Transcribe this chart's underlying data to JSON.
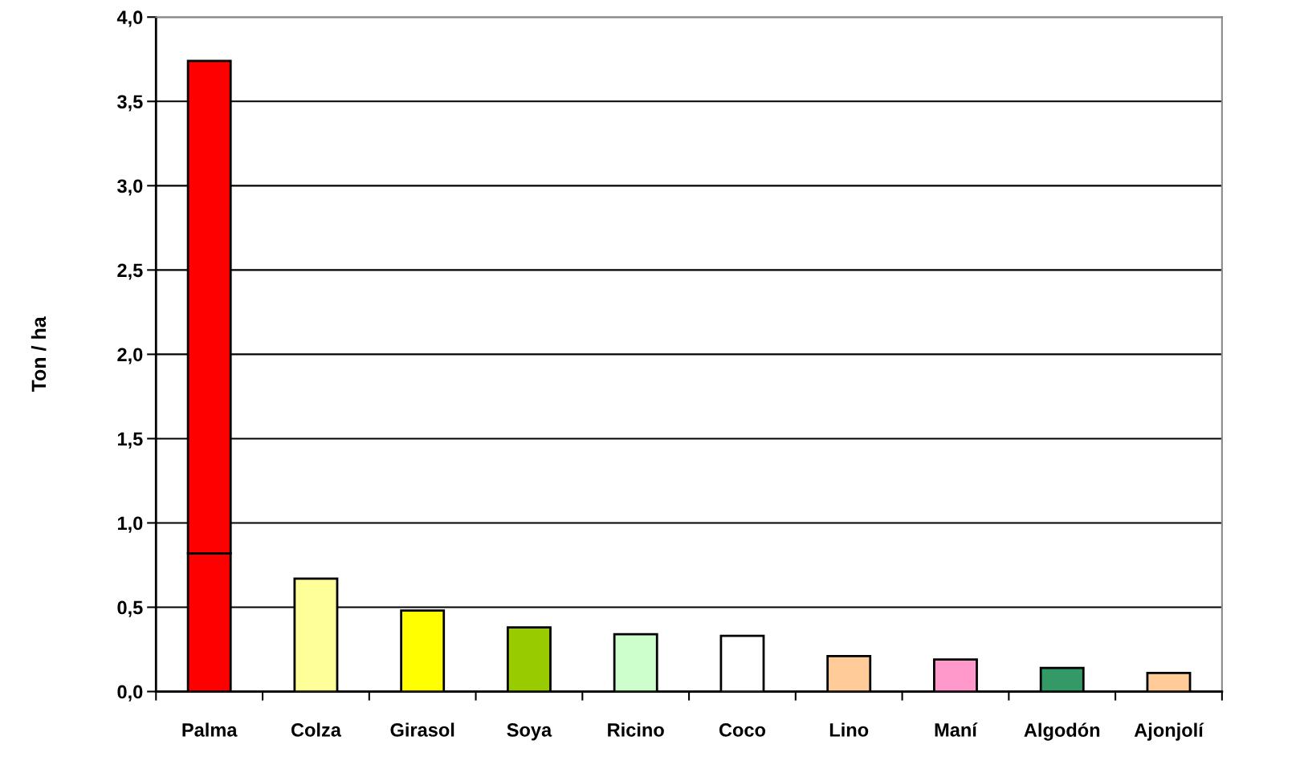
{
  "chart_data": {
    "type": "bar",
    "ylabel": "Ton / ha",
    "stacked": true,
    "categories": [
      "Palma",
      "Colza",
      "Girasol",
      "Soya",
      "Ricino",
      "Coco",
      "Lino",
      "Maní",
      "Algodón",
      "Ajonjolí"
    ],
    "series": [
      {
        "colors": [
          "#ff0000",
          "#ffff99",
          "#ffff00",
          "#99cc00",
          "#ccffcc",
          "#ffffff",
          "#ffcc99",
          "#ff99cc",
          "#339966",
          "#ffcc99"
        ],
        "values": [
          0.82,
          0.67,
          0.48,
          0.38,
          0.34,
          0.33,
          0.21,
          0.19,
          0.14,
          0.11
        ]
      },
      {
        "color": "#ff0000",
        "values": [
          2.92,
          null,
          null,
          null,
          null,
          null,
          null,
          null,
          null,
          null
        ]
      }
    ],
    "ylim": [
      0,
      4
    ],
    "yticks": [
      {
        "value": 0,
        "label": "0,0"
      },
      {
        "value": 0.5,
        "label": "0,5"
      },
      {
        "value": 1,
        "label": "1,0"
      },
      {
        "value": 1.5,
        "label": "1,5"
      },
      {
        "value": 2,
        "label": "2,0"
      },
      {
        "value": 2.5,
        "label": "2,5"
      },
      {
        "value": 3,
        "label": "3,0"
      },
      {
        "value": 3.5,
        "label": "3,5"
      },
      {
        "value": 4,
        "label": "4,0"
      }
    ],
    "grid": "y"
  }
}
